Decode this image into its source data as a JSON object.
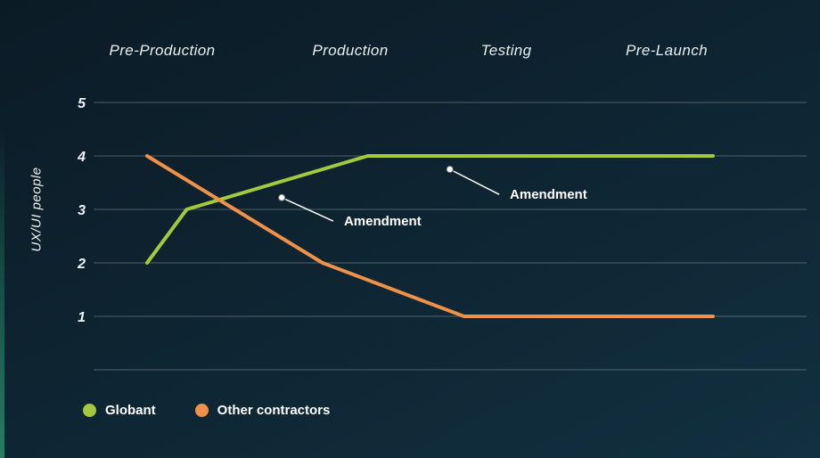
{
  "chart_data": {
    "type": "line",
    "categories": [
      "Pre-Production",
      "Production",
      "Testing",
      "Pre-Launch"
    ],
    "title": "",
    "xlabel": "",
    "ylabel": "UX/UI people",
    "ylim": [
      0,
      5
    ],
    "yticks": [
      5,
      4,
      3,
      2,
      1
    ],
    "grid": true,
    "legend_position": "bottom-left",
    "series": [
      {
        "name": "Globant",
        "color": "#a4c93c",
        "points": [
          {
            "x_pct": 0,
            "y": 2
          },
          {
            "x_pct": 7,
            "y": 3
          },
          {
            "x_pct": 39,
            "y": 4
          },
          {
            "x_pct": 100,
            "y": 4
          }
        ]
      },
      {
        "name": "Other contractors",
        "color": "#f0914a",
        "points": [
          {
            "x_pct": 0,
            "y": 4
          },
          {
            "x_pct": 31,
            "y": 2
          },
          {
            "x_pct": 56,
            "y": 1
          },
          {
            "x_pct": 100,
            "y": 1
          }
        ]
      }
    ],
    "annotations": [
      {
        "label": "Amendment",
        "dot": {
          "x_pct": 23.8,
          "y": 3.22
        },
        "text": {
          "x_pct": 34.8,
          "y": 2.78
        }
      },
      {
        "label": "Amendment",
        "dot": {
          "x_pct": 53.5,
          "y": 3.75
        },
        "text": {
          "x_pct": 64.1,
          "y": 3.28
        }
      }
    ]
  },
  "colors": {
    "background_top": "#0b1b26",
    "background_bottom": "#123040",
    "grid": "rgba(255,255,255,0.28)",
    "text": "#eef3f5",
    "accent_edge": "#2c8c6c"
  }
}
